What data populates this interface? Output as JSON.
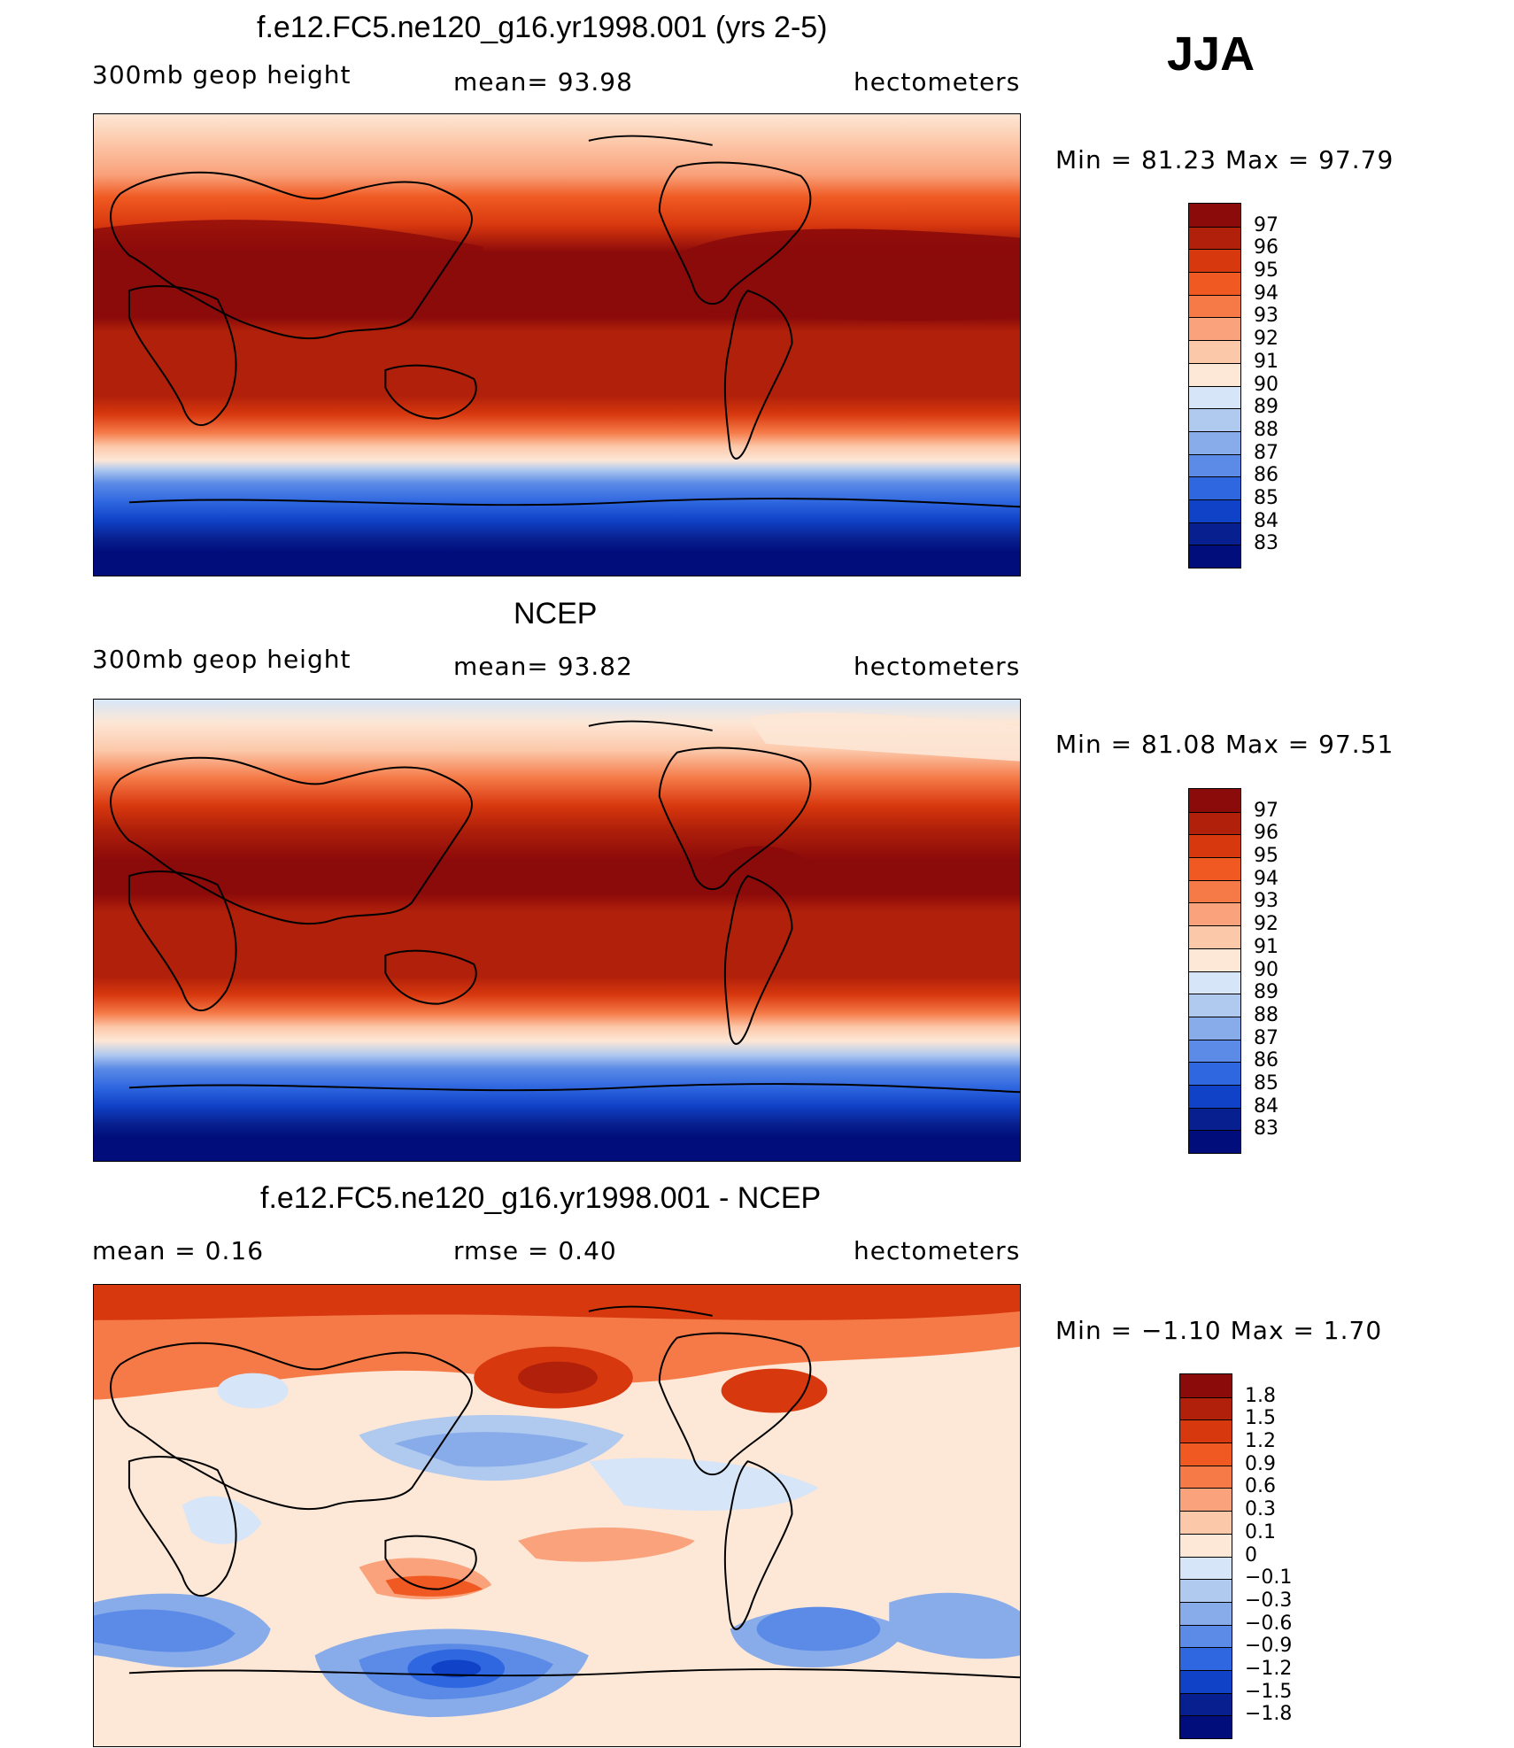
{
  "season": "JJA",
  "panels": [
    {
      "title": "f.e12.FC5.ne120_g16.yr1998.001 (yrs 2-5)",
      "left_label": "300mb  geop  height",
      "center_label": "mean=   93.98",
      "right_label": "hectometers",
      "minmax": "Min  =    81.23  Max  =    97.79",
      "colorbar": [
        "97",
        "96",
        "95",
        "94",
        "93",
        "92",
        "91",
        "90",
        "89",
        "88",
        "87",
        "86",
        "85",
        "84",
        "83"
      ],
      "colors": [
        "#8b0a0a",
        "#b0200a",
        "#d8380e",
        "#f05a22",
        "#f57a48",
        "#f9a27c",
        "#fcc8aa",
        "#fde7d6",
        "#d6e6f8",
        "#b0c9ef",
        "#88acea",
        "#5b8be6",
        "#2f67e0",
        "#1042c8",
        "#08208f",
        "#000d7a"
      ]
    },
    {
      "title": "NCEP",
      "left_label": "300mb  geop  height",
      "center_label": "mean=   93.82",
      "right_label": "hectometers",
      "minmax": "Min  =    81.08  Max  =    97.51",
      "colorbar": [
        "97",
        "96",
        "95",
        "94",
        "93",
        "92",
        "91",
        "90",
        "89",
        "88",
        "87",
        "86",
        "85",
        "84",
        "83"
      ],
      "colors": [
        "#8b0a0a",
        "#b0200a",
        "#d8380e",
        "#f05a22",
        "#f57a48",
        "#f9a27c",
        "#fcc8aa",
        "#fde7d6",
        "#d6e6f8",
        "#b0c9ef",
        "#88acea",
        "#5b8be6",
        "#2f67e0",
        "#1042c8",
        "#08208f",
        "#000d7a"
      ]
    },
    {
      "title": "f.e12.FC5.ne120_g16.yr1998.001 - NCEP",
      "left_label": "mean  =     0.16",
      "center_label": "rmse  =     0.40",
      "right_label": "hectometers",
      "minmax": "Min  =    −1.10  Max  =      1.70",
      "colorbar": [
        "1.8",
        "1.5",
        "1.2",
        "0.9",
        "0.6",
        "0.3",
        "0.1",
        "0",
        "−0.1",
        "−0.3",
        "−0.6",
        "−0.9",
        "−1.2",
        "−1.5",
        "−1.8"
      ],
      "colors": [
        "#8b0a0a",
        "#b0200a",
        "#d8380e",
        "#f05a22",
        "#f57a48",
        "#f9a27c",
        "#fcc8aa",
        "#fde7d6",
        "#d6e6f8",
        "#b0c9ef",
        "#88acea",
        "#5b8be6",
        "#2f67e0",
        "#1042c8",
        "#08208f",
        "#000d7a"
      ]
    }
  ]
}
